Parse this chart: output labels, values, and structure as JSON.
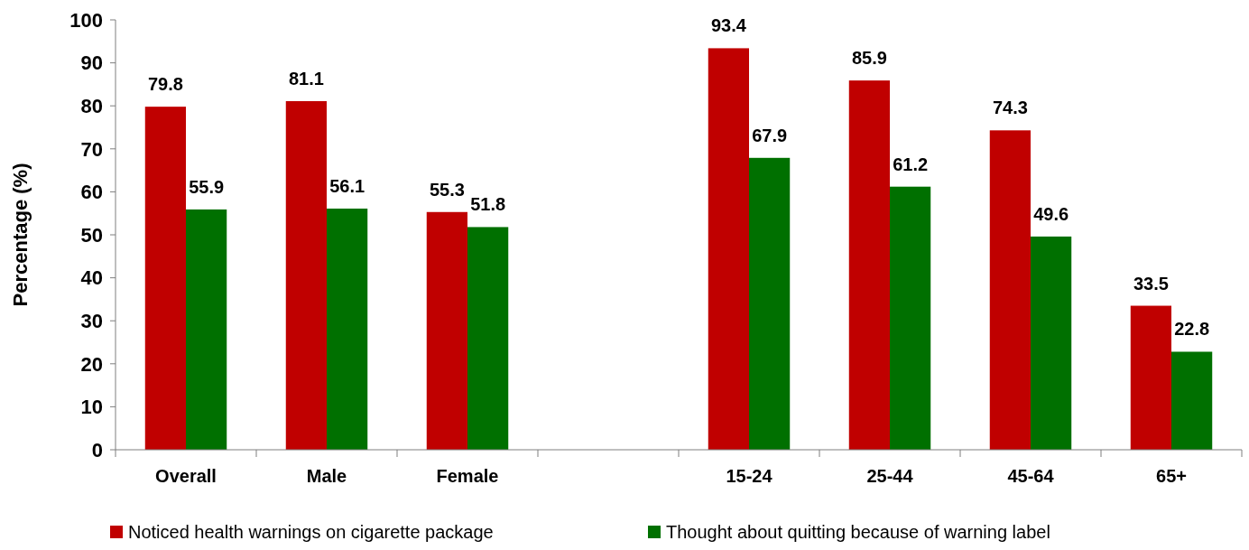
{
  "chart_data": {
    "type": "bar",
    "ylabel": "Percentage (%)",
    "categories": [
      "Overall",
      "Male",
      "Female",
      null,
      "15-24",
      "25-44",
      "45-64",
      "65+"
    ],
    "series": [
      {
        "name": "Noticed health warnings on cigarette package",
        "color": "#c00000",
        "values": [
          79.8,
          81.1,
          55.3,
          null,
          93.4,
          85.9,
          74.3,
          33.5
        ]
      },
      {
        "name": "Thought about quitting because of warning label",
        "color": "#007000",
        "values": [
          55.9,
          56.1,
          51.8,
          null,
          67.9,
          61.2,
          49.6,
          22.8
        ]
      }
    ],
    "ylim": [
      0,
      100
    ],
    "yticks": [
      0,
      10,
      20,
      30,
      40,
      50,
      60,
      70,
      80,
      90,
      100
    ],
    "data_labels": true,
    "legend": "bottom",
    "grid": false
  }
}
